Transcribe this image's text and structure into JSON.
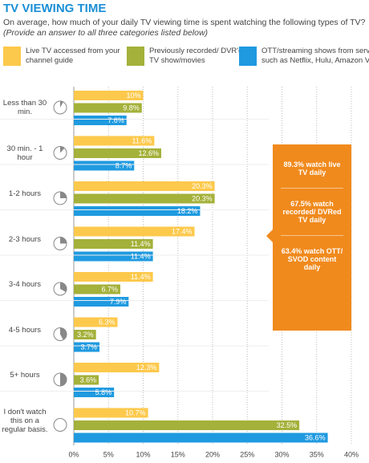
{
  "chart_data": {
    "type": "hbar",
    "title": "TV VIEWING TIME",
    "subtitle": "On average, how much of your daily TV viewing time is spent watching the following types of TV?",
    "note": "(Provide an answer to all three categories listed below)",
    "categories": [
      "Less than 30 min.",
      "30 min. - 1 hour",
      "1-2 hours",
      "2-3 hours",
      "3-4 hours",
      "4-5 hours",
      "5+ hours",
      "I don't watch this on a regular basis."
    ],
    "series": [
      {
        "name": "Live TV accessed from your channel guide",
        "color": "#fdc94c",
        "values": [
          10,
          11.6,
          20.3,
          17.4,
          11.4,
          6.3,
          12.3,
          10.7
        ],
        "value_labels": [
          "10%",
          "11.6%",
          "20.3%",
          "17.4%",
          "11.4%",
          "6.3%",
          "12.3%",
          "10.7%"
        ]
      },
      {
        "name": "Previously recorded/ DVR'd TV show/movies",
        "color": "#a4b13a",
        "values": [
          9.8,
          12.6,
          20.3,
          11.4,
          6.7,
          3.2,
          3.6,
          32.5
        ],
        "value_labels": [
          "9.8%",
          "12.6%",
          "20.3%",
          "11.4%",
          "6.7%",
          "3.2%",
          "3.6%",
          "32.5%"
        ]
      },
      {
        "name": "OTT/streaming shows from services such as Netflix, Hulu, Amazon Video",
        "color": "#1f9ae0",
        "values": [
          7.6,
          8.7,
          18.2,
          11.4,
          7.9,
          3.7,
          5.8,
          36.6
        ],
        "value_labels": [
          "7.6%",
          "8.7%",
          "18.2%",
          "11.4%",
          "7.9%",
          "3.7%",
          "5.8%",
          "36.6%"
        ]
      }
    ],
    "xlim": [
      0,
      40
    ],
    "xticks": [
      {
        "value": 0,
        "label": "0%"
      },
      {
        "value": 5,
        "label": "5%"
      },
      {
        "value": 10,
        "label": "10%"
      },
      {
        "value": 15,
        "label": "15%"
      },
      {
        "value": 20,
        "label": "20%"
      },
      {
        "value": 25,
        "label": "25%"
      },
      {
        "value": 30,
        "label": "30%"
      },
      {
        "value": 35,
        "label": "35%"
      },
      {
        "value": 40,
        "label": "40%"
      }
    ],
    "grid": true,
    "callout_color": "#f08a1d",
    "annotations": [
      "89.3% watch live TV daily",
      "67.5% watch recorded/ DVRed TV daily",
      "63.4% watch OTT/ SVOD content daily"
    ]
  }
}
